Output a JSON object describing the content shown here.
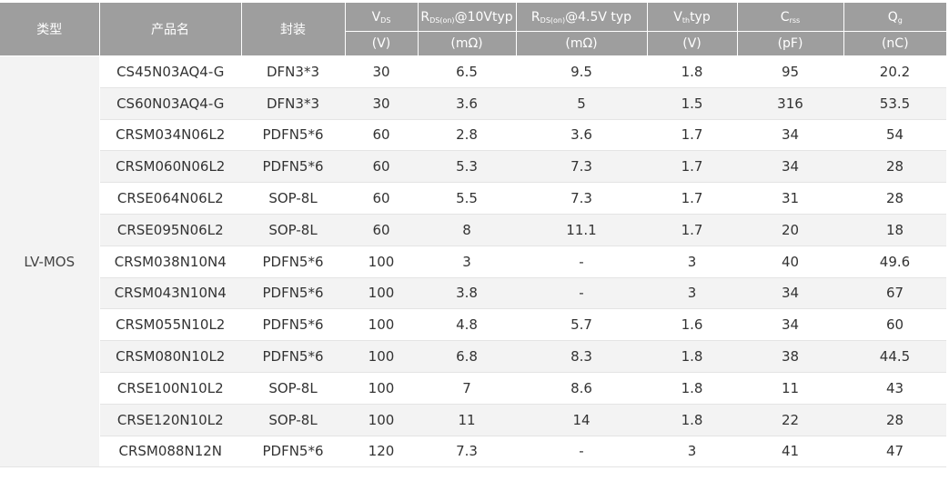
{
  "header": {
    "type": "类型",
    "product": "产品名",
    "package": "封装",
    "vds": {
      "main": "V",
      "sub": "DS",
      "unit": "(V)"
    },
    "rds10": {
      "main": "R",
      "sub": "DS(on)",
      "tail": "@10Vtyp",
      "unit": "(mΩ)"
    },
    "rds45": {
      "main": "R",
      "sub": "DS(on)",
      "tail": "@4.5V typ",
      "unit": "(mΩ)"
    },
    "vth": {
      "main": "V",
      "sub": "th",
      "tail": "typ",
      "unit": "(V)"
    },
    "crss": {
      "main": "C",
      "sub": "rss",
      "unit": "(pF)"
    },
    "qg": {
      "main": "Q",
      "sub": "g",
      "unit": "(nC)"
    }
  },
  "type_value": "LV-MOS",
  "rows": [
    [
      "CS45N03AQ4-G",
      "DFN3*3",
      "30",
      "6.5",
      "9.5",
      "1.8",
      "95",
      "20.2"
    ],
    [
      "CS60N03AQ4-G",
      "DFN3*3",
      "30",
      "3.6",
      "5",
      "1.5",
      "316",
      "53.5"
    ],
    [
      "CRSM034N06L2",
      "PDFN5*6",
      "60",
      "2.8",
      "3.6",
      "1.7",
      "34",
      "54"
    ],
    [
      "CRSM060N06L2",
      "PDFN5*6",
      "60",
      "5.3",
      "7.3",
      "1.7",
      "34",
      "28"
    ],
    [
      "CRSE064N06L2",
      "SOP-8L",
      "60",
      "5.5",
      "7.3",
      "1.7",
      "31",
      "28"
    ],
    [
      "CRSE095N06L2",
      "SOP-8L",
      "60",
      "8",
      "11.1",
      "1.7",
      "20",
      "18"
    ],
    [
      "CRSM038N10N4",
      "PDFN5*6",
      "100",
      "3",
      "-",
      "3",
      "40",
      "49.6"
    ],
    [
      "CRSM043N10N4",
      "PDFN5*6",
      "100",
      "3.8",
      "-",
      "3",
      "34",
      "67"
    ],
    [
      "CRSM055N10L2",
      "PDFN5*6",
      "100",
      "4.8",
      "5.7",
      "1.6",
      "34",
      "60"
    ],
    [
      "CRSM080N10L2",
      "PDFN5*6",
      "100",
      "6.8",
      "8.3",
      "1.8",
      "38",
      "44.5"
    ],
    [
      "CRSE100N10L2",
      "SOP-8L",
      "100",
      "7",
      "8.6",
      "1.8",
      "11",
      "43"
    ],
    [
      "CRSE120N10L2",
      "SOP-8L",
      "100",
      "11",
      "14",
      "1.8",
      "22",
      "28"
    ],
    [
      "CRSM088N12N",
      "PDFN5*6",
      "120",
      "7.3",
      "-",
      "3",
      "41",
      "47"
    ]
  ]
}
